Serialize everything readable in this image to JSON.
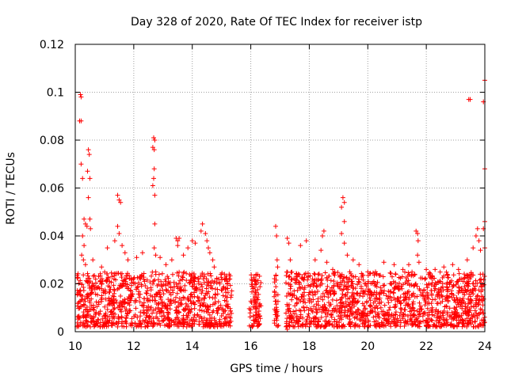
{
  "chart_data": {
    "type": "scatter",
    "title": "Day 328 of 2020, Rate Of TEC Index for receiver istp",
    "xlabel": "GPS time / hours",
    "ylabel": "ROTI / TECUs",
    "xlim": [
      10,
      24
    ],
    "ylim": [
      0,
      0.12
    ],
    "x_ticks": [
      10,
      12,
      14,
      16,
      18,
      20,
      22,
      24
    ],
    "x_tick_labels": [
      "10",
      "12",
      "14",
      "16",
      "18",
      "20",
      "22",
      "24"
    ],
    "y_ticks": [
      0,
      0.02,
      0.04,
      0.06,
      0.08,
      0.1,
      0.12
    ],
    "y_tick_labels": [
      "0",
      "0.02",
      "0.04",
      "0.06",
      "0.08",
      "0.1",
      "0.12"
    ],
    "grid": true,
    "marker": "+",
    "series": [
      {
        "name": "ROTI",
        "color": "#ff0000",
        "dense_band": {
          "y_range": [
            0.002,
            0.025
          ],
          "x_gaps": [
            [
              15.35,
              15.95
            ],
            [
              16.35,
              16.8
            ],
            [
              16.95,
              17.2
            ]
          ]
        },
        "points": [
          [
            10.18,
            0.099
          ],
          [
            10.2,
            0.098
          ],
          [
            10.15,
            0.088
          ],
          [
            10.2,
            0.088
          ],
          [
            10.2,
            0.07
          ],
          [
            10.25,
            0.064
          ],
          [
            10.45,
            0.076
          ],
          [
            10.48,
            0.074
          ],
          [
            10.42,
            0.067
          ],
          [
            10.5,
            0.064
          ],
          [
            10.45,
            0.056
          ],
          [
            10.5,
            0.047
          ],
          [
            10.3,
            0.047
          ],
          [
            10.35,
            0.045
          ],
          [
            10.4,
            0.044
          ],
          [
            10.52,
            0.043
          ],
          [
            10.25,
            0.04
          ],
          [
            10.3,
            0.036
          ],
          [
            10.22,
            0.032
          ],
          [
            10.28,
            0.03
          ],
          [
            10.35,
            0.028
          ],
          [
            10.6,
            0.03
          ],
          [
            10.9,
            0.027
          ],
          [
            11.1,
            0.035
          ],
          [
            11.45,
            0.057
          ],
          [
            11.5,
            0.055
          ],
          [
            11.55,
            0.054
          ],
          [
            11.45,
            0.044
          ],
          [
            11.5,
            0.041
          ],
          [
            11.35,
            0.038
          ],
          [
            11.6,
            0.036
          ],
          [
            11.7,
            0.033
          ],
          [
            11.8,
            0.03
          ],
          [
            12.1,
            0.031
          ],
          [
            12.3,
            0.033
          ],
          [
            12.68,
            0.081
          ],
          [
            12.72,
            0.08
          ],
          [
            12.65,
            0.077
          ],
          [
            12.7,
            0.076
          ],
          [
            12.7,
            0.068
          ],
          [
            12.68,
            0.064
          ],
          [
            12.65,
            0.061
          ],
          [
            12.72,
            0.057
          ],
          [
            12.72,
            0.045
          ],
          [
            12.7,
            0.035
          ],
          [
            12.75,
            0.032
          ],
          [
            12.9,
            0.031
          ],
          [
            13.1,
            0.028
          ],
          [
            13.3,
            0.03
          ],
          [
            13.45,
            0.039
          ],
          [
            13.5,
            0.038
          ],
          [
            13.55,
            0.039
          ],
          [
            13.5,
            0.036
          ],
          [
            13.7,
            0.032
          ],
          [
            13.85,
            0.035
          ],
          [
            14.0,
            0.038
          ],
          [
            14.1,
            0.037
          ],
          [
            14.3,
            0.042
          ],
          [
            14.35,
            0.045
          ],
          [
            14.45,
            0.041
          ],
          [
            14.5,
            0.038
          ],
          [
            14.55,
            0.035
          ],
          [
            14.6,
            0.033
          ],
          [
            14.7,
            0.03
          ],
          [
            14.75,
            0.027
          ],
          [
            15.1,
            0.024
          ],
          [
            15.15,
            0.022
          ],
          [
            16.1,
            0.022
          ],
          [
            16.15,
            0.021
          ],
          [
            16.85,
            0.044
          ],
          [
            16.88,
            0.04
          ],
          [
            16.9,
            0.03
          ],
          [
            16.92,
            0.027
          ],
          [
            17.25,
            0.039
          ],
          [
            17.3,
            0.037
          ],
          [
            17.35,
            0.03
          ],
          [
            17.25,
            0.001
          ],
          [
            17.7,
            0.036
          ],
          [
            17.9,
            0.038
          ],
          [
            18.2,
            0.03
          ],
          [
            18.45,
            0.04
          ],
          [
            18.5,
            0.042
          ],
          [
            18.4,
            0.034
          ],
          [
            18.6,
            0.029
          ],
          [
            18.8,
            0.026
          ],
          [
            19.1,
            0.052
          ],
          [
            19.15,
            0.056
          ],
          [
            19.2,
            0.054
          ],
          [
            19.2,
            0.046
          ],
          [
            19.1,
            0.041
          ],
          [
            19.2,
            0.037
          ],
          [
            19.3,
            0.032
          ],
          [
            19.5,
            0.03
          ],
          [
            19.7,
            0.028
          ],
          [
            20.0,
            0.025
          ],
          [
            20.3,
            0.024
          ],
          [
            20.55,
            0.029
          ],
          [
            20.9,
            0.028
          ],
          [
            21.2,
            0.026
          ],
          [
            21.4,
            0.028
          ],
          [
            21.65,
            0.042
          ],
          [
            21.7,
            0.041
          ],
          [
            21.72,
            0.038
          ],
          [
            21.7,
            0.032
          ],
          [
            21.75,
            0.029
          ],
          [
            22.0,
            0.026
          ],
          [
            22.3,
            0.026
          ],
          [
            22.6,
            0.027
          ],
          [
            22.9,
            0.028
          ],
          [
            23.1,
            0.026
          ],
          [
            23.4,
            0.03
          ],
          [
            23.6,
            0.035
          ],
          [
            23.7,
            0.04
          ],
          [
            23.75,
            0.043
          ],
          [
            23.8,
            0.038
          ],
          [
            23.85,
            0.034
          ],
          [
            23.45,
            0.097
          ],
          [
            23.5,
            0.097
          ],
          [
            23.95,
            0.096
          ],
          [
            24.0,
            0.105
          ],
          [
            24.0,
            0.068
          ],
          [
            24.0,
            0.046
          ],
          [
            23.95,
            0.043
          ],
          [
            24.0,
            0.035
          ]
        ]
      }
    ]
  }
}
